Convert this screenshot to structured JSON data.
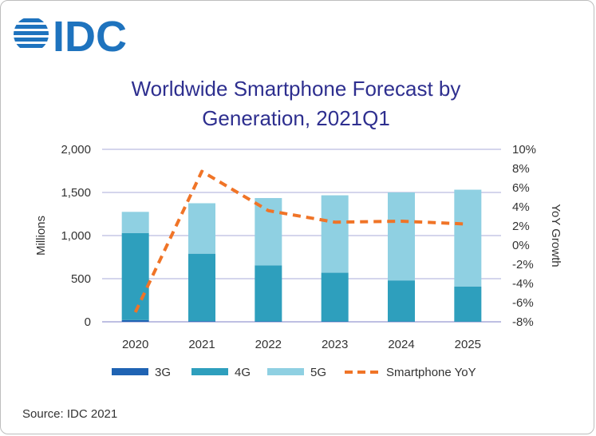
{
  "brand": {
    "name": "IDC",
    "color": "#1e73be"
  },
  "chart_data": {
    "type": "bar",
    "stacked": true,
    "title_lines": [
      "Worldwide Smartphone Forecast by",
      "Generation, 2021Q1"
    ],
    "categories": [
      "2020",
      "2021",
      "2022",
      "2023",
      "2024",
      "2025"
    ],
    "ylabel": "Millions",
    "ylim": [
      0,
      2000
    ],
    "yticks": [
      0,
      500,
      1000,
      1500,
      2000
    ],
    "ytick_labels": [
      "0",
      "500",
      "1,000",
      "1,500",
      "2,000"
    ],
    "y2label": "YoY Growth",
    "y2lim": [
      -8,
      10
    ],
    "y2ticks": [
      10,
      8,
      6,
      4,
      2,
      0,
      -2,
      -4,
      -6,
      -8
    ],
    "y2tick_labels": [
      "10%",
      "8%",
      "6%",
      "4%",
      "2%",
      "0%",
      "-2%",
      "-4%",
      "-6%",
      "-8%"
    ],
    "grid": true,
    "series": [
      {
        "name": "3G",
        "kind": "bar",
        "color": "#1f63b3",
        "values": [
          20,
          8,
          5,
          4,
          3,
          2
        ]
      },
      {
        "name": "4G",
        "kind": "bar",
        "color": "#2e9fbd",
        "values": [
          1010,
          782,
          650,
          565,
          477,
          408
        ]
      },
      {
        "name": "5G",
        "kind": "bar",
        "color": "#8fd0e2",
        "values": [
          245,
          585,
          780,
          898,
          1020,
          1122
        ]
      },
      {
        "name": "Smartphone YoY",
        "kind": "line",
        "axis": "y2",
        "color": "#f07427",
        "dashed": true,
        "values": [
          -7.0,
          7.7,
          3.6,
          2.4,
          2.5,
          2.2
        ]
      }
    ],
    "legend_position": "bottom"
  },
  "source": "Source: IDC 2021"
}
